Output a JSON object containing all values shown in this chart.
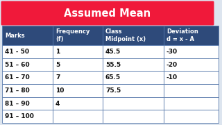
{
  "title": "Assumed Mean",
  "title_bg": "#f0193a",
  "title_color": "#ffffff",
  "header_bg": "#2e4a7a",
  "header_color": "#ffffff",
  "row_bg": "#ffffff",
  "border_color": "#5577aa",
  "outer_bg": "#dde5ef",
  "col_headers": [
    "Marks",
    "Frequency\n(f)",
    "Class\nMidpoint (x)",
    "Deviation\nd = x - A"
  ],
  "rows": [
    [
      "41 - 50",
      "1",
      "45.5",
      "-30"
    ],
    [
      "51 – 60",
      "5",
      "55.5",
      "-20"
    ],
    [
      "61 – 70",
      "7",
      "65.5",
      "-10"
    ],
    [
      "71 – 80",
      "10",
      "75.5",
      ""
    ],
    [
      "81 – 90",
      "4",
      "",
      ""
    ],
    [
      "91 – 100",
      "",
      "",
      ""
    ]
  ],
  "figsize": [
    3.2,
    1.8
  ],
  "dpi": 100
}
